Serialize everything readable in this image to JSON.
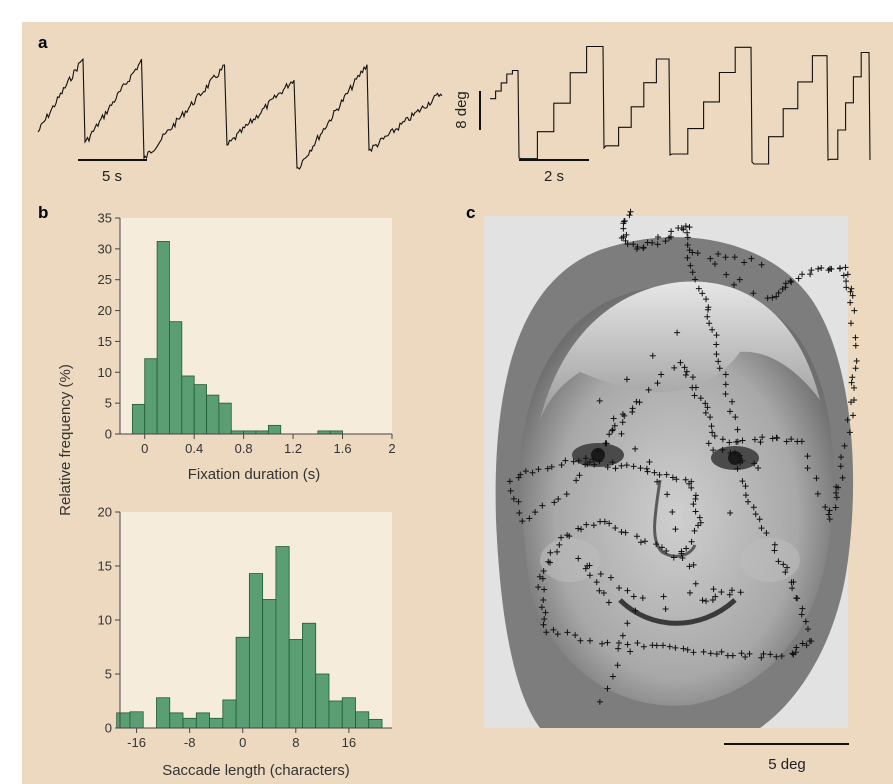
{
  "panel_labels": {
    "a": "a",
    "b": "b",
    "c": "c"
  },
  "panel_a": {
    "left_scale_label": "5 s",
    "right_scale_label": "2 s",
    "vertical_scale_label": "8 deg"
  },
  "panel_b": {
    "ylabel": "Relative frequency (%)"
  },
  "panel_c": {
    "scale_label": "5 deg"
  },
  "colors": {
    "background": "#ecd9bf",
    "plot_area": "#f6ecdc",
    "bar_fill": "#5c9e74",
    "bar_stroke": "#1f5c36",
    "trace": "#111111"
  },
  "chart_data": [
    {
      "type": "bar",
      "xlabel": "Fixation duration (s)",
      "ylabel": "Relative frequency (%)",
      "xlim": [
        -0.2,
        2.0
      ],
      "ylim": [
        0,
        35
      ],
      "xticks": [
        "0",
        "0.4",
        "0.8",
        "1.2",
        "1.6",
        "2"
      ],
      "yticks": [
        "0",
        "5",
        "10",
        "15",
        "20",
        "25",
        "30",
        "35"
      ],
      "bin_width": 0.1,
      "bins": [
        {
          "x": -0.05,
          "value": 4.8
        },
        {
          "x": 0.05,
          "value": 12.2
        },
        {
          "x": 0.15,
          "value": 31.2
        },
        {
          "x": 0.25,
          "value": 18.2
        },
        {
          "x": 0.35,
          "value": 9.4
        },
        {
          "x": 0.45,
          "value": 8.0
        },
        {
          "x": 0.55,
          "value": 6.3
        },
        {
          "x": 0.65,
          "value": 5.0
        },
        {
          "x": 0.75,
          "value": 0.5
        },
        {
          "x": 0.85,
          "value": 0.5
        },
        {
          "x": 0.95,
          "value": 0.5
        },
        {
          "x": 1.05,
          "value": 1.4
        },
        {
          "x": 1.45,
          "value": 0.5
        },
        {
          "x": 1.55,
          "value": 0.5
        }
      ]
    },
    {
      "type": "bar",
      "xlabel": "Saccade length (characters)",
      "ylabel": "Relative frequency (%)",
      "xlim": [
        -18.5,
        22.5
      ],
      "ylim": [
        0,
        20
      ],
      "xticks": [
        "-16",
        "-8",
        "0",
        "8",
        "16"
      ],
      "yticks": [
        "0",
        "5",
        "10",
        "15",
        "20"
      ],
      "bin_width": 2,
      "bins": [
        {
          "x": -18,
          "value": 1.4
        },
        {
          "x": -16,
          "value": 1.5
        },
        {
          "x": -12,
          "value": 2.8
        },
        {
          "x": -10,
          "value": 1.4
        },
        {
          "x": -8,
          "value": 0.9
        },
        {
          "x": -6,
          "value": 1.4
        },
        {
          "x": -4,
          "value": 0.9
        },
        {
          "x": -2,
          "value": 2.6
        },
        {
          "x": 0,
          "value": 8.4
        },
        {
          "x": 2,
          "value": 14.3
        },
        {
          "x": 4,
          "value": 11.9
        },
        {
          "x": 6,
          "value": 16.8
        },
        {
          "x": 8,
          "value": 8.2
        },
        {
          "x": 10,
          "value": 9.7
        },
        {
          "x": 12,
          "value": 5.0
        },
        {
          "x": 14,
          "value": 2.5
        },
        {
          "x": 16,
          "value": 2.8
        },
        {
          "x": 18,
          "value": 1.5
        },
        {
          "x": 20,
          "value": 0.8
        }
      ]
    }
  ]
}
